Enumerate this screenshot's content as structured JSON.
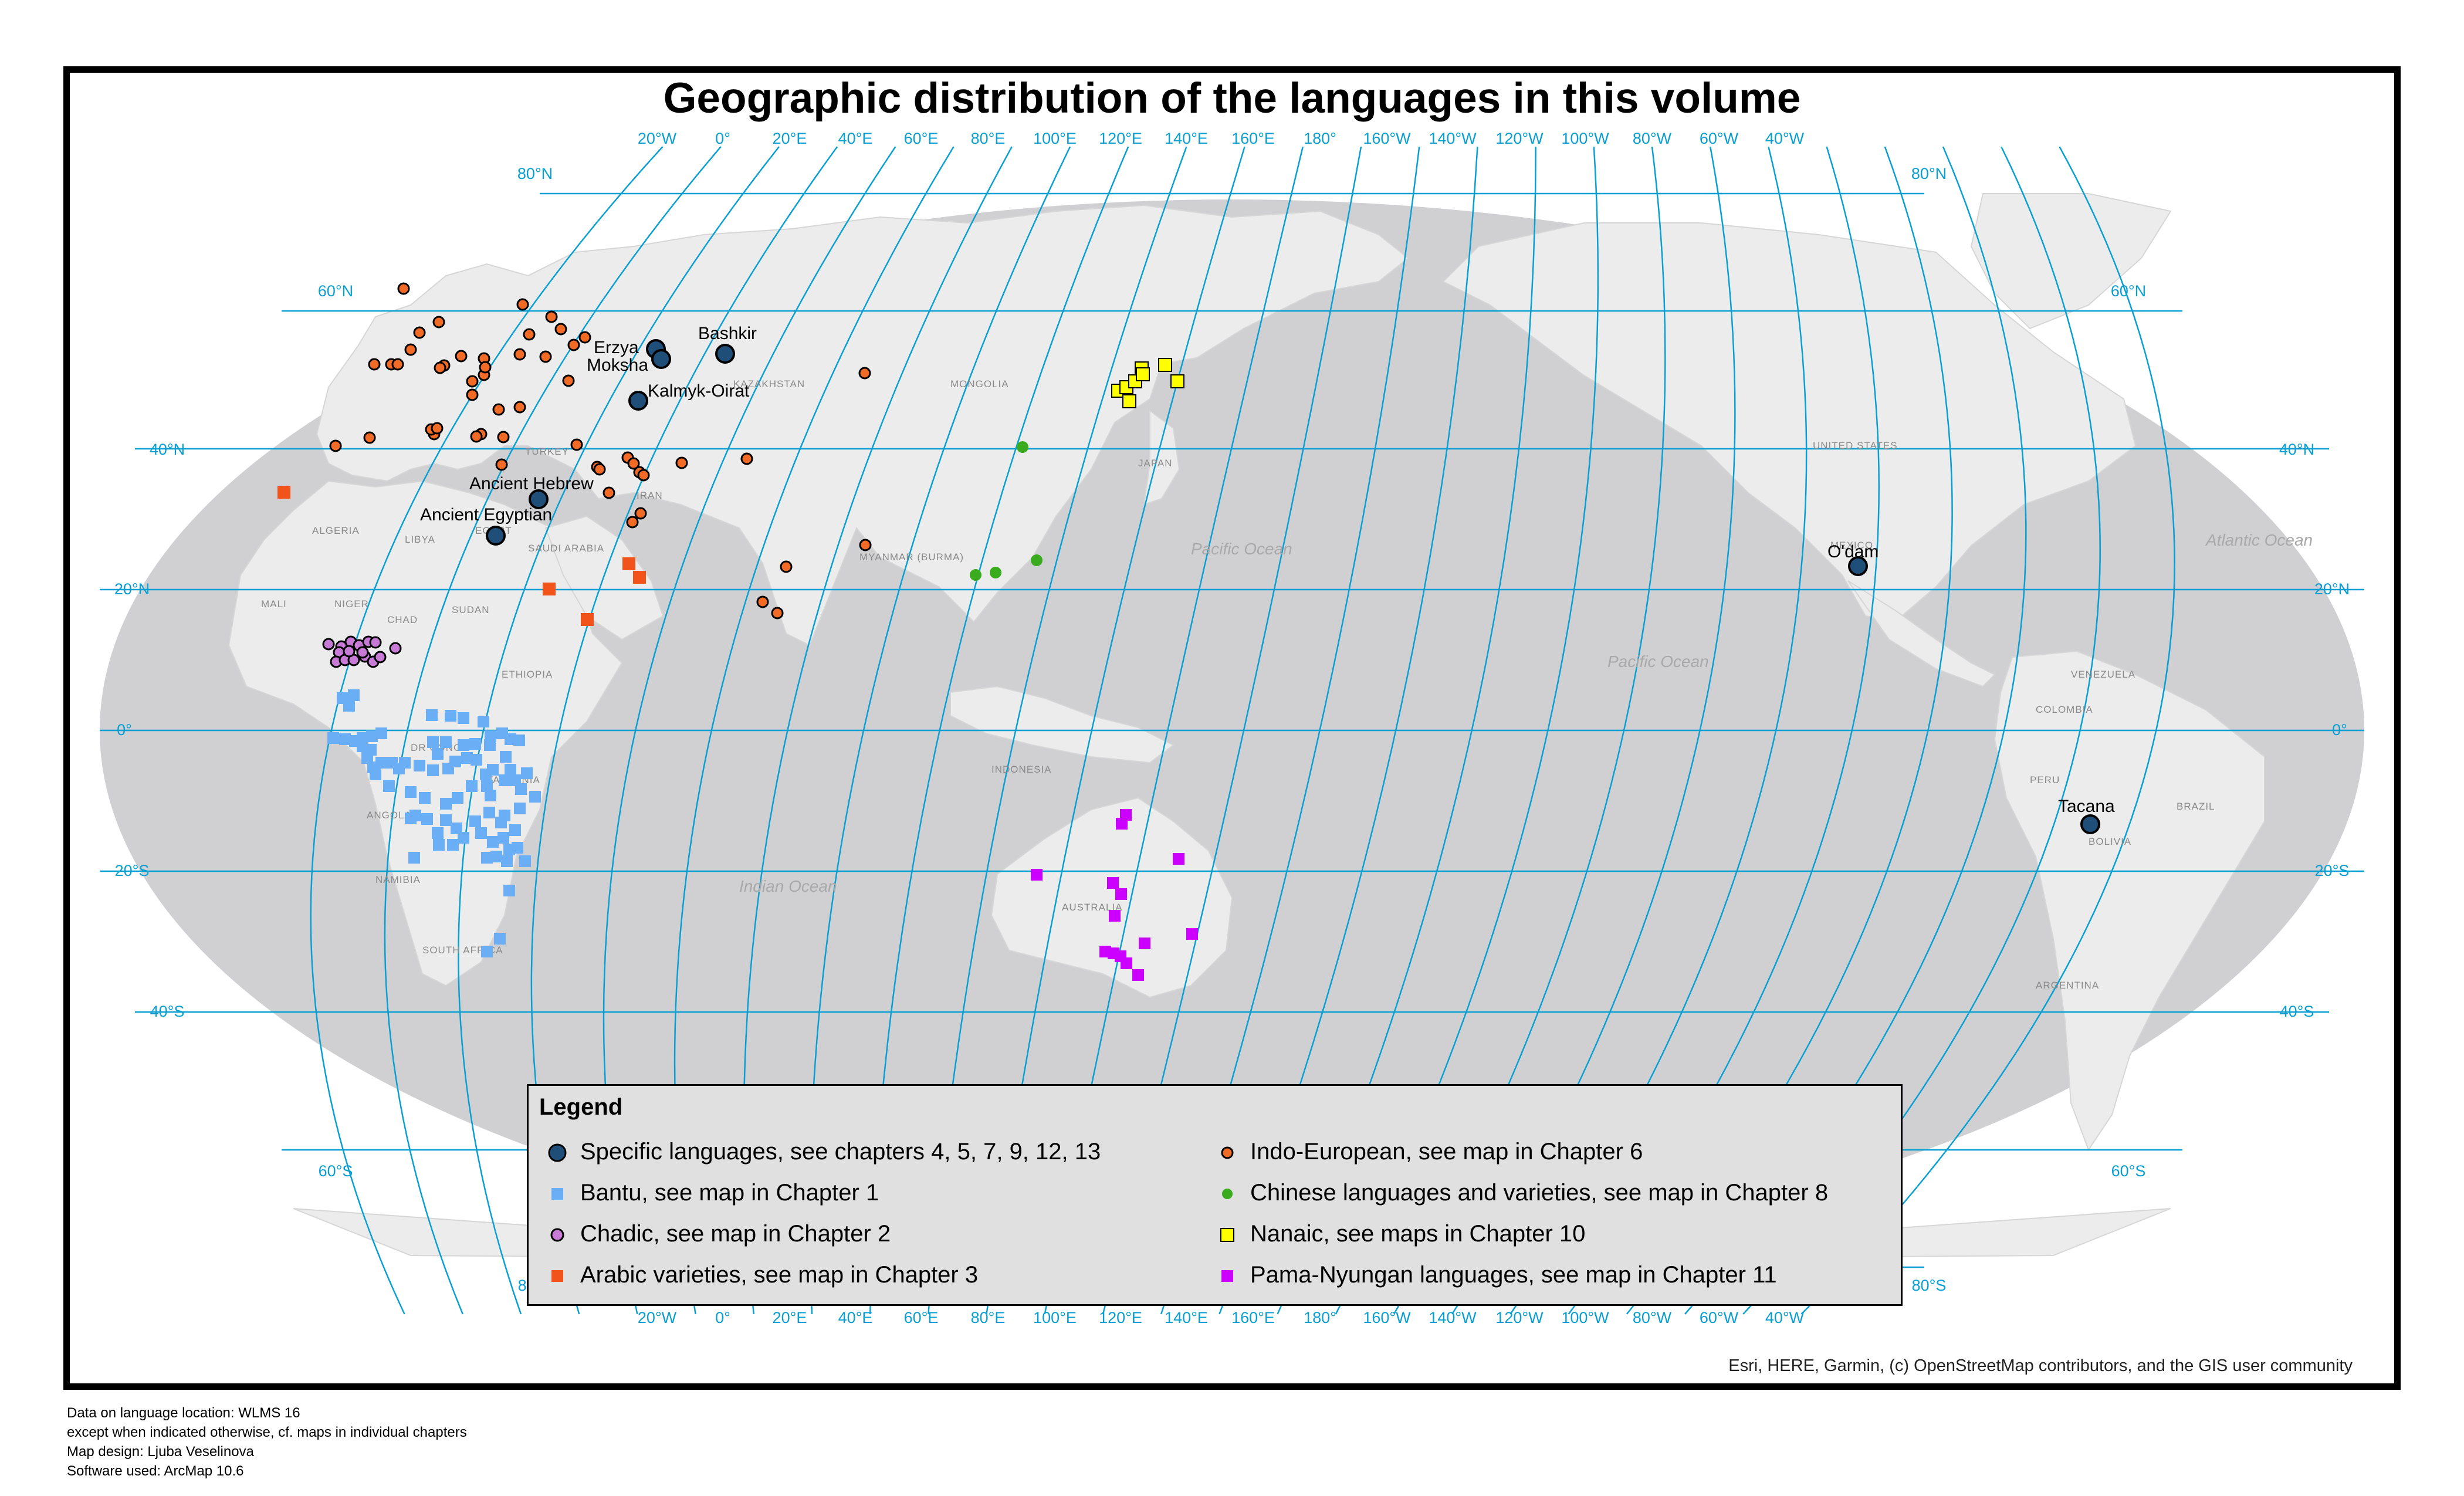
{
  "title": "Geographic distribution of the languages in this volume",
  "graticule": {
    "longitude_labels": [
      "20°W",
      "0°",
      "20°E",
      "40°E",
      "60°E",
      "80°E",
      "100°E",
      "120°E",
      "140°E",
      "160°E",
      "180°",
      "160°W",
      "140°W",
      "120°W",
      "100°W",
      "80°W",
      "60°W",
      "40°W"
    ],
    "latitude_labels_left": [
      "80°N",
      "60°N",
      "40°N",
      "20°N",
      "0°",
      "20°S",
      "40°S",
      "60°S",
      "80°S"
    ],
    "latitude_labels_right": [
      "80°N",
      "60°N",
      "40°N",
      "20°N",
      "0°",
      "20°S",
      "40°S",
      "60°S",
      "80°S"
    ]
  },
  "basemap_labels": {
    "countries": [
      "ALGERIA",
      "LIBYA",
      "EGYPT",
      "SAUDI ARABIA",
      "MALI",
      "NIGER",
      "CHAD",
      "SUDAN",
      "ETHIOPIA",
      "DR CONGO",
      "TANZANIA",
      "ANGOLA",
      "NAMIBIA",
      "SOUTH AFRICA",
      "TURKEY",
      "IRAN",
      "MYANMAR (BURMA)",
      "KAZAKHSTAN",
      "MONGOLIA",
      "JAPAN",
      "INDONESIA",
      "AUSTRALIA",
      "UNITED STATES",
      "MEXICO",
      "VENEZUELA",
      "COLOMBIA",
      "PERU",
      "BRAZIL",
      "BOLIVIA",
      "ARGENTINA"
    ],
    "oceans": [
      "Pacific Ocean",
      "Pacific Ocean",
      "Indian Ocean",
      "Atlantic Ocean"
    ]
  },
  "language_labels": [
    "Bashkir",
    "Erzya",
    "Moksha",
    "Kalmyk-Oirat",
    "Ancient Hebrew",
    "Ancient Egyptian",
    "O'dam",
    "Tacana"
  ],
  "legend": {
    "title": "Legend",
    "items": [
      {
        "label": "Specific languages, see chapters 4, 5, 7, 9, 12, 13",
        "symbol": "circle-large",
        "color": "#1f4e79"
      },
      {
        "label": "Bantu, see map in Chapter 1",
        "symbol": "square",
        "color": "#6aaef6"
      },
      {
        "label": "Chadic, see map in Chapter 2",
        "symbol": "circle",
        "color": "#c77bd6"
      },
      {
        "label": "Arabic varieties, see map in Chapter 3",
        "symbol": "square",
        "color": "#f2531a"
      },
      {
        "label": "Indo-European, see map in Chapter 6",
        "symbol": "circle",
        "color": "#f26b26"
      },
      {
        "label": "Chinese languages and varieties, see map in Chapter 8",
        "symbol": "circle",
        "color": "#3aaa1e"
      },
      {
        "label": "Nanaic, see maps in Chapter 10",
        "symbol": "square",
        "color": "#ffff00"
      },
      {
        "label": "Pama-Nyungan languages, see map in Chapter 11",
        "symbol": "square",
        "color": "#cc00ff"
      }
    ]
  },
  "attribution": "Esri, HERE, Garmin, (c) OpenStreetMap contributors, and the GIS user community",
  "notes": [
    "Data on language location: WLMS 16",
    "except when indicated otherwise, cf. maps in individual chapters",
    "Map design: Ljuba Veselinova",
    "Software used: ArcMap 10.6"
  ],
  "colors": {
    "ocean": "#d0d0d3",
    "land": "#ececec",
    "graticule": "#0a9fd3",
    "frame": "#000000",
    "legend_bg": "#e0e0e0"
  }
}
